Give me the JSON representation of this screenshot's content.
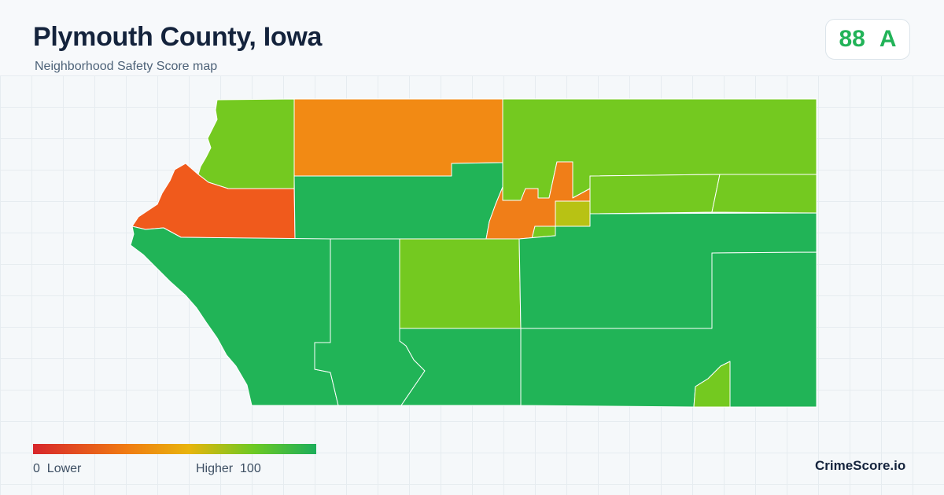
{
  "title": "Plymouth County, Iowa",
  "subtitle": "Neighborhood Safety Score map",
  "badge": {
    "score": "88",
    "grade": "A",
    "color": "#22b358"
  },
  "legend": {
    "min": "0",
    "min_label": "Lower",
    "max_label": "Higher",
    "max": "100",
    "colors": [
      "#d7262b",
      "#f07b12",
      "#e8b40c",
      "#6cc924",
      "#1cae5a"
    ]
  },
  "brand": "CrimeScore.io",
  "regions": [
    {
      "name": "northwest-upper",
      "color": "#74c920"
    },
    {
      "name": "north-central",
      "color": "#f28a14"
    },
    {
      "name": "northeast",
      "color": "#74c920"
    },
    {
      "name": "west-lobe",
      "color": "#f05a1c"
    },
    {
      "name": "central-north",
      "color": "#21b457"
    },
    {
      "name": "le-mars-area",
      "color": "#f07e18"
    },
    {
      "name": "east-strip-west",
      "color": "#74c920"
    },
    {
      "name": "east-strip-east",
      "color": "#74c920"
    },
    {
      "name": "east-small",
      "color": "#b8c214"
    },
    {
      "name": "southwest",
      "color": "#21b457"
    },
    {
      "name": "south-central-west",
      "color": "#21b457"
    },
    {
      "name": "center",
      "color": "#74c920"
    },
    {
      "name": "east-middle",
      "color": "#21b457"
    },
    {
      "name": "southeast",
      "color": "#21b457"
    },
    {
      "name": "south-central",
      "color": "#21b457"
    },
    {
      "name": "southeast-small",
      "color": "#74c920"
    }
  ]
}
